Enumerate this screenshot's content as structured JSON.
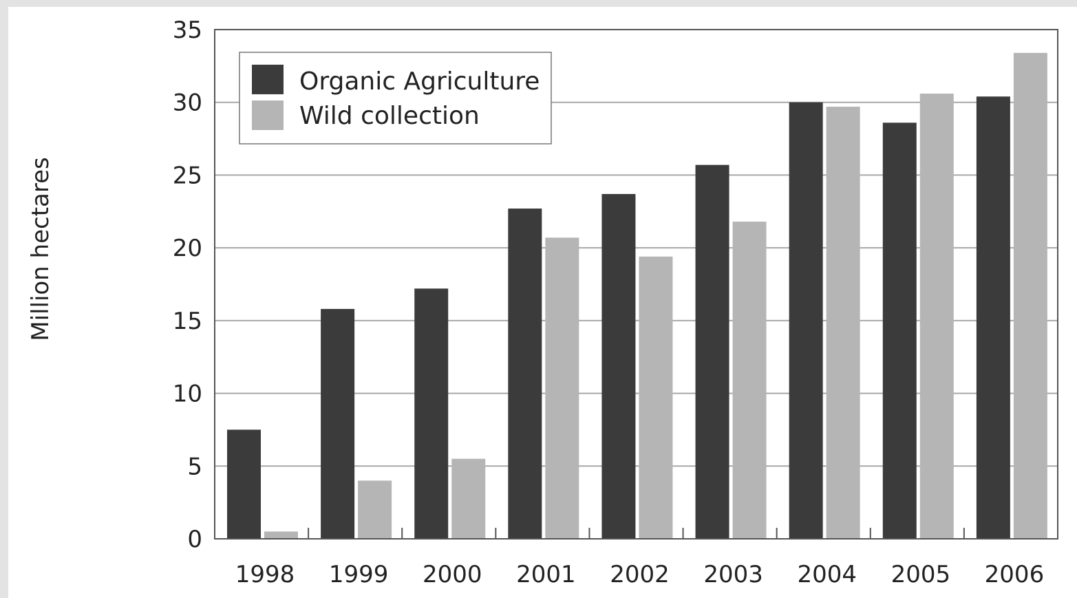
{
  "colors": {
    "organic": "#3b3b3b",
    "wild": "#b5b5b5",
    "grid": "#a8a8a8",
    "axis": "#555555",
    "text": "#222222"
  },
  "chart_data": {
    "type": "bar",
    "title": "",
    "xlabel": "",
    "ylabel": "Million hectares",
    "categories": [
      "1998",
      "1999",
      "2000",
      "2001",
      "2002",
      "2003",
      "2004",
      "2005",
      "2006"
    ],
    "series": [
      {
        "name": "Organic Agriculture",
        "values": [
          7.5,
          15.8,
          17.2,
          22.7,
          23.7,
          25.7,
          30.0,
          28.6,
          30.4
        ]
      },
      {
        "name": "Wild collection",
        "values": [
          0.5,
          4.0,
          5.5,
          20.7,
          19.4,
          21.8,
          29.7,
          30.6,
          33.4
        ]
      }
    ],
    "ylim": [
      0,
      35
    ],
    "yticks": [
      "0",
      "5",
      "10",
      "15",
      "20",
      "25",
      "30",
      "35"
    ],
    "grid": true,
    "legend_position": "top-left"
  }
}
